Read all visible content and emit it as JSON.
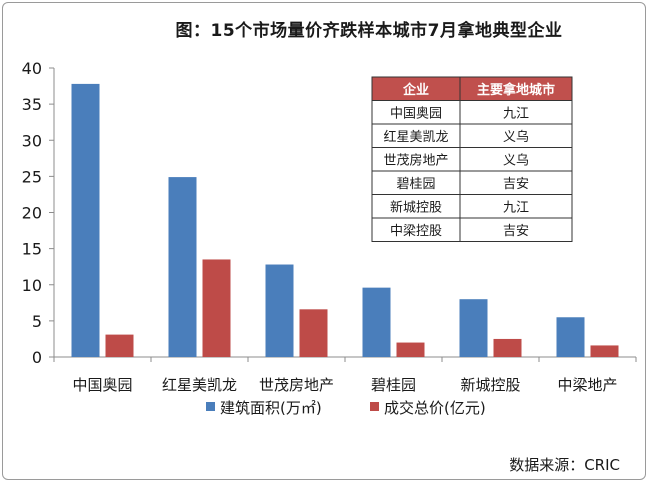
{
  "title": "图：15个市场量价齐跌样本城市7月拿地典型企业",
  "source": "数据来源：CRIC",
  "chart_data": {
    "type": "bar",
    "title": "图：15个市场量价齐跌样本城市7月拿地典型企业",
    "categories": [
      "中国奥园",
      "红星美凯龙",
      "世茂房地产",
      "碧桂园",
      "新城控股",
      "中梁地产"
    ],
    "series": [
      {
        "name": "建筑面积(万㎡)",
        "color": "#4a7ebb",
        "values": [
          37.8,
          24.9,
          12.8,
          9.6,
          8.0,
          5.5
        ]
      },
      {
        "name": "成交总价(亿元)",
        "color": "#be4b48",
        "values": [
          3.1,
          13.5,
          6.6,
          2.0,
          2.5,
          1.6
        ]
      }
    ],
    "ylim": [
      0,
      40
    ],
    "yticks": [
      0,
      5,
      10,
      15,
      20,
      25,
      30,
      35,
      40
    ],
    "grid": false,
    "legend": "bottom",
    "table": {
      "headers": [
        "企业",
        "主要拿地城市"
      ],
      "header_color": "#c0504d",
      "rows": [
        [
          "中国奥园",
          "九江"
        ],
        [
          "红星美凯龙",
          "义乌"
        ],
        [
          "世茂房地产",
          "义乌"
        ],
        [
          "碧桂园",
          "吉安"
        ],
        [
          "新城控股",
          "九江"
        ],
        [
          "中梁控股",
          "吉安"
        ]
      ]
    }
  }
}
